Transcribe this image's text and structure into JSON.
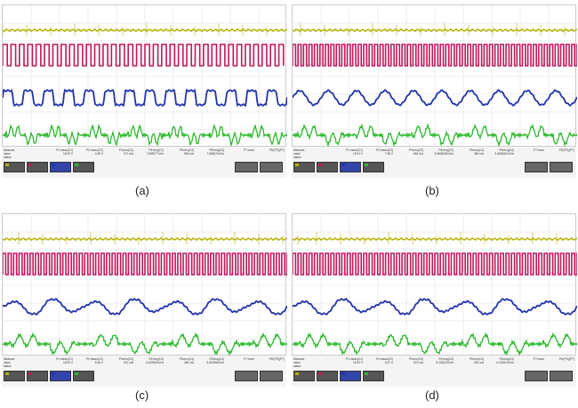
{
  "colors": {
    "c1": "#b5b000",
    "c2": "#c2185b",
    "c3": "#2233aa",
    "c4": "#2eb82e"
  },
  "row_labels": [
    "Measure",
    "value",
    "status"
  ],
  "panels": [
    {
      "label": "(a)",
      "params": [
        {
          "name": "P1:mean(C1)",
          "value": "15.92 V"
        },
        {
          "name": "P2:mean(C2)",
          "value": "4.85 V"
        },
        {
          "name": "P3:rms(C3)",
          "value": "271 mA"
        },
        {
          "name": "P4:freq(C3)",
          "value": "7.508377 kHz"
        },
        {
          "name": "P5:rms(C4)",
          "value": "505 mA"
        },
        {
          "name": "P6:freq(C4)",
          "value": "7.508376 kHz"
        },
        {
          "name": "P7:none",
          "value": ""
        },
        {
          "name": "P8:(PS)(PT)",
          "value": ""
        }
      ]
    },
    {
      "label": "(b)",
      "params": [
        {
          "name": "P1:mean(C1)",
          "value": "15.91 V"
        },
        {
          "name": "P2:mean(C2)",
          "value": "7.56 V"
        },
        {
          "name": "P3:rms(C3)",
          "value": "652 mA"
        },
        {
          "name": "P4:freq(C3)",
          "value": "5.6606359 kHz"
        },
        {
          "name": "P5:rms(C4)",
          "value": "380 mA"
        },
        {
          "name": "P6:freq(C4)",
          "value": "5.6606324 kHz"
        },
        {
          "name": "P7:none",
          "value": ""
        },
        {
          "name": "P8:(PS)(PT)",
          "value": ""
        }
      ]
    },
    {
      "label": "(c)",
      "params": [
        {
          "name": "P1:mean(C1)",
          "value": "15.93 V"
        },
        {
          "name": "P2:mean(C2)",
          "value": "5.46 V"
        },
        {
          "name": "P3:rms(C3)",
          "value": "621 mA"
        },
        {
          "name": "P4:freq(C3)",
          "value": "5.622865 kHz"
        },
        {
          "name": "P5:rms(C4)",
          "value": "380 mA"
        },
        {
          "name": "P6:freq(C4)",
          "value": "5.622865 kHz"
        },
        {
          "name": "P7:none",
          "value": ""
        },
        {
          "name": "P8:(PS)(PT)",
          "value": ""
        }
      ]
    },
    {
      "label": "(d)",
      "params": [
        {
          "name": "P1:mean(C1)",
          "value": "15.93 V"
        },
        {
          "name": "P2:mean(C2)",
          "value": "5.37 V"
        },
        {
          "name": "P3:rms(C3)",
          "value": "670 mA"
        },
        {
          "name": "P4:freq(C3)",
          "value": "6.222815 kHz"
        },
        {
          "name": "P5:rms(C4)",
          "value": "391 mA"
        },
        {
          "name": "P6:freq(C4)",
          "value": "6.222815 kHz"
        },
        {
          "name": "P7:none",
          "value": ""
        },
        {
          "name": "P8:(PS)(PT)",
          "value": ""
        }
      ]
    }
  ]
}
